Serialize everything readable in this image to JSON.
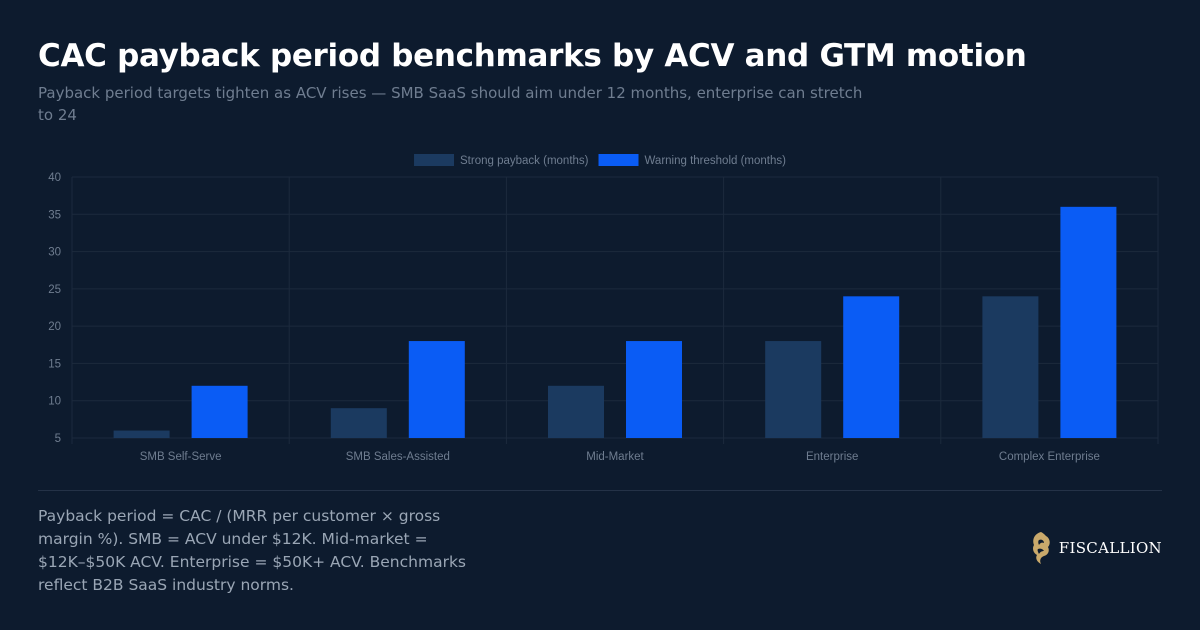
{
  "title": "CAC payback period benchmarks by ACV and GTM motion",
  "subtitle": "Payback period targets tighten as ACV rises — SMB SaaS should aim under 12 months, enterprise can stretch to 24",
  "footnote": "Payback period = CAC / (MRR per customer × gross margin %). SMB = ACV under $12K. Mid-market = $12K–$50K ACV. Enterprise = $50K+ ACV. Benchmarks reflect B2B SaaS industry norms.",
  "brand": {
    "name": "FISCALLION",
    "icon": "lion-head-logo-icon"
  },
  "colors": {
    "background": "#0d1b2e",
    "strong": "#1b3a60",
    "warning": "#0a5cf5",
    "grid": "#1c2a3d",
    "tick": "#6f7d90",
    "brand_gold": "#c9a96b"
  },
  "chart_data": {
    "type": "bar",
    "categories": [
      "SMB Self-Serve",
      "SMB Sales-Assisted",
      "Mid-Market",
      "Enterprise",
      "Complex Enterprise"
    ],
    "series": [
      {
        "name": "Strong payback (months)",
        "values": [
          6,
          9,
          12,
          18,
          24
        ]
      },
      {
        "name": "Warning threshold (months)",
        "values": [
          12,
          18,
          18,
          24,
          36
        ]
      }
    ],
    "ylim": [
      5,
      40
    ],
    "yticks": [
      5,
      10,
      15,
      20,
      25,
      30,
      35,
      40
    ],
    "grid": true,
    "legend": "top-center"
  }
}
